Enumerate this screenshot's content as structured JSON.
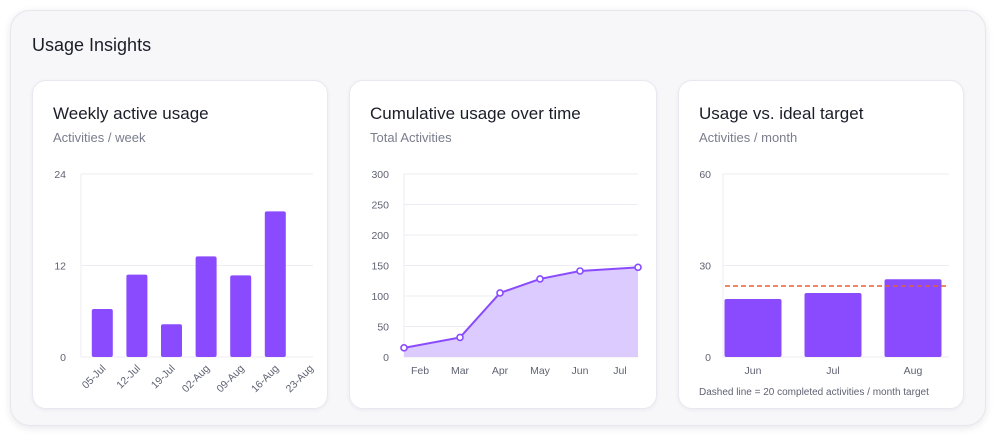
{
  "panel": {
    "title": "Usage Insights"
  },
  "colors": {
    "bar": "#8a4bff",
    "line": "#8a4bff",
    "area": "#dccbff",
    "grid": "#ececf2",
    "target": "#e8612c"
  },
  "cards": [
    {
      "title": "Weekly active usage",
      "subtitle": "Activities / week"
    },
    {
      "title": "Cumulative usage over time",
      "subtitle": "Total Activities"
    },
    {
      "title": "Usage vs. ideal target",
      "subtitle": "Activities / month",
      "note": "Dashed line = 20 completed activities / month target"
    }
  ],
  "chart_data": [
    {
      "type": "bar",
      "categories": [
        "05-Jul",
        "12-Jul",
        "19-Jul",
        "02-Aug",
        "09-Aug",
        "16-Aug",
        "23-Aug"
      ],
      "values": [
        6.3,
        10.8,
        4.3,
        13.2,
        10.7,
        19.1,
        0
      ],
      "ylim": [
        0,
        24
      ],
      "yticks": [
        "0",
        "12",
        "24"
      ],
      "grid": true
    },
    {
      "type": "area",
      "categories": [
        "Feb",
        "Mar",
        "Apr",
        "May",
        "Jun",
        "Jul"
      ],
      "values": [
        15,
        32,
        105,
        128,
        141,
        147
      ],
      "ylim": [
        0,
        300
      ],
      "yticks": [
        "0",
        "50",
        "100",
        "150",
        "200",
        "250",
        "300"
      ],
      "grid": true
    },
    {
      "type": "bar",
      "categories": [
        "Jun",
        "Jul",
        "Aug"
      ],
      "values": [
        19,
        21,
        25.5
      ],
      "target": 20,
      "ylim": [
        0,
        60
      ],
      "yticks": [
        "0",
        "30",
        "60"
      ],
      "grid": true
    }
  ]
}
